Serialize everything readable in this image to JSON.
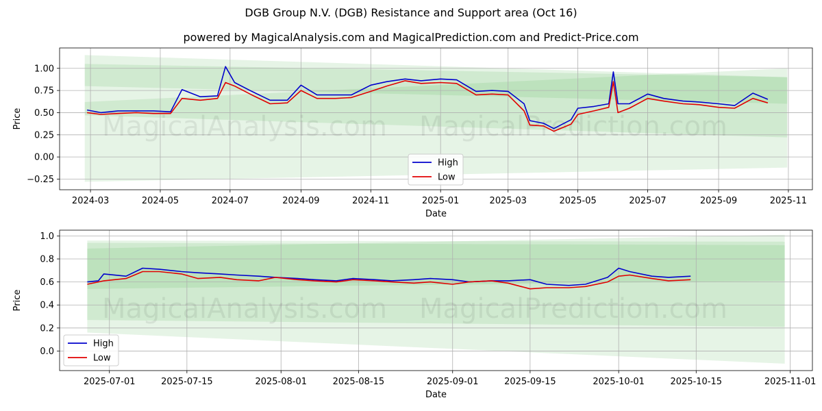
{
  "title": "DGB Group N.V. (DGB) Resistance and Support area (Oct 16)",
  "subtitle": "powered by MagicalAnalysis.com and MagicalPrediction.com and Predict-Price.com",
  "watermarks": [
    "MagicalAnalysis.com",
    "MagicalPrediction.com"
  ],
  "colors": {
    "high": "#0000cc",
    "low": "#e00000",
    "band": "#4caf50",
    "grid": "#b0b0b0"
  },
  "chart_data": [
    {
      "type": "line",
      "xlabel": "Date",
      "ylabel": "Price",
      "xlim": [
        "2024-02-03",
        "2025-11-22"
      ],
      "ylim": [
        -0.37,
        1.23
      ],
      "grid": true,
      "legend": {
        "position": "bottom-center",
        "entries": [
          "High",
          "Low"
        ]
      },
      "x_ticks": [
        "2024-03",
        "2024-05",
        "2024-07",
        "2024-09",
        "2024-11",
        "2025-01",
        "2025-03",
        "2025-05",
        "2025-07",
        "2025-09",
        "2025-11"
      ],
      "x_tick_dates": [
        "2024-03-01",
        "2024-05-01",
        "2024-07-01",
        "2024-09-01",
        "2024-11-01",
        "2025-01-01",
        "2025-03-01",
        "2025-05-01",
        "2025-07-01",
        "2025-09-01",
        "2025-11-01"
      ],
      "y_ticks": [
        "−0.25",
        "0.00",
        "0.25",
        "0.50",
        "0.75",
        "1.00"
      ],
      "y_tick_values": [
        -0.25,
        0,
        0.25,
        0.5,
        0.75,
        1.0
      ],
      "bands": [
        {
          "x": [
            "2024-02-25",
            "2025-10-31"
          ],
          "upper": [
            1.05,
            0.9
          ],
          "lower": [
            0.8,
            0.6
          ]
        },
        {
          "x": [
            "2024-02-25",
            "2025-10-31"
          ],
          "upper": [
            0.62,
            1.0
          ],
          "lower": [
            0.47,
            0.22
          ]
        },
        {
          "x": [
            "2024-02-25",
            "2025-10-31"
          ],
          "upper": [
            1.15,
            0.9
          ],
          "lower": [
            -0.28,
            -0.12
          ]
        }
      ],
      "series": [
        {
          "name": "High",
          "x": [
            "2024-02-27",
            "2024-03-10",
            "2024-03-25",
            "2024-04-10",
            "2024-04-25",
            "2024-05-10",
            "2024-05-20",
            "2024-06-05",
            "2024-06-20",
            "2024-06-27",
            "2024-07-05",
            "2024-07-20",
            "2024-08-05",
            "2024-08-20",
            "2024-09-01",
            "2024-09-15",
            "2024-10-01",
            "2024-10-15",
            "2024-11-01",
            "2024-11-15",
            "2024-12-01",
            "2024-12-15",
            "2025-01-01",
            "2025-01-15",
            "2025-02-01",
            "2025-02-15",
            "2025-03-01",
            "2025-03-15",
            "2025-03-20",
            "2025-04-01",
            "2025-04-10",
            "2025-04-25",
            "2025-05-01",
            "2025-05-15",
            "2025-05-28",
            "2025-06-01",
            "2025-06-05",
            "2025-06-15",
            "2025-07-01",
            "2025-07-15",
            "2025-08-01",
            "2025-08-15",
            "2025-09-01",
            "2025-09-15",
            "2025-10-01",
            "2025-10-14"
          ],
          "values": [
            0.53,
            0.5,
            0.52,
            0.52,
            0.52,
            0.51,
            0.76,
            0.68,
            0.69,
            1.02,
            0.84,
            0.74,
            0.64,
            0.64,
            0.81,
            0.7,
            0.7,
            0.7,
            0.81,
            0.85,
            0.88,
            0.86,
            0.88,
            0.87,
            0.74,
            0.75,
            0.74,
            0.6,
            0.41,
            0.38,
            0.32,
            0.42,
            0.55,
            0.57,
            0.6,
            0.96,
            0.6,
            0.6,
            0.71,
            0.66,
            0.63,
            0.62,
            0.6,
            0.58,
            0.72,
            0.65
          ]
        },
        {
          "name": "Low",
          "x": [
            "2024-02-27",
            "2024-03-10",
            "2024-03-25",
            "2024-04-10",
            "2024-04-25",
            "2024-05-10",
            "2024-05-20",
            "2024-06-05",
            "2024-06-20",
            "2024-06-27",
            "2024-07-05",
            "2024-07-20",
            "2024-08-05",
            "2024-08-20",
            "2024-09-01",
            "2024-09-15",
            "2024-10-01",
            "2024-10-15",
            "2024-11-01",
            "2024-11-15",
            "2024-12-01",
            "2024-12-15",
            "2025-01-01",
            "2025-01-15",
            "2025-02-01",
            "2025-02-15",
            "2025-03-01",
            "2025-03-15",
            "2025-03-20",
            "2025-04-01",
            "2025-04-10",
            "2025-04-25",
            "2025-05-01",
            "2025-05-15",
            "2025-05-28",
            "2025-06-01",
            "2025-06-05",
            "2025-06-15",
            "2025-07-01",
            "2025-07-15",
            "2025-08-01",
            "2025-08-15",
            "2025-09-01",
            "2025-09-15",
            "2025-10-01",
            "2025-10-14"
          ],
          "values": [
            0.5,
            0.48,
            0.49,
            0.5,
            0.49,
            0.49,
            0.66,
            0.64,
            0.66,
            0.84,
            0.8,
            0.7,
            0.6,
            0.61,
            0.75,
            0.66,
            0.66,
            0.67,
            0.74,
            0.8,
            0.86,
            0.83,
            0.84,
            0.83,
            0.7,
            0.71,
            0.7,
            0.52,
            0.36,
            0.35,
            0.29,
            0.37,
            0.48,
            0.52,
            0.56,
            0.85,
            0.5,
            0.55,
            0.66,
            0.63,
            0.6,
            0.59,
            0.56,
            0.55,
            0.66,
            0.61
          ]
        }
      ]
    },
    {
      "type": "line",
      "xlabel": "Date",
      "ylabel": "Price",
      "xlim": [
        "2025-06-22",
        "2025-11-05"
      ],
      "ylim": [
        -0.17,
        1.05
      ],
      "grid": true,
      "legend": {
        "position": "bottom-left",
        "entries": [
          "High",
          "Low"
        ]
      },
      "x_ticks": [
        "2025-07-01",
        "2025-07-15",
        "2025-08-01",
        "2025-08-15",
        "2025-09-01",
        "2025-09-15",
        "2025-10-01",
        "2025-10-15",
        "2025-11-01"
      ],
      "y_ticks": [
        "0.0",
        "0.2",
        "0.4",
        "0.6",
        "0.8",
        "1.0"
      ],
      "y_tick_values": [
        0,
        0.2,
        0.4,
        0.6,
        0.8,
        1.0
      ],
      "bands": [
        {
          "x": [
            "2025-06-27",
            "2025-10-31"
          ],
          "upper": [
            0.94,
            0.92
          ],
          "lower": [
            0.54,
            0.61
          ]
        },
        {
          "x": [
            "2025-06-27",
            "2025-10-31"
          ],
          "upper": [
            0.89,
            1.01
          ],
          "lower": [
            0.27,
            0.21
          ]
        },
        {
          "x": [
            "2025-06-27",
            "2025-10-31"
          ],
          "upper": [
            0.96,
            0.95
          ],
          "lower": [
            0.16,
            -0.11
          ]
        }
      ],
      "series": [
        {
          "name": "High",
          "x": [
            "2025-06-27",
            "2025-06-29",
            "2025-06-30",
            "2025-07-04",
            "2025-07-07",
            "2025-07-10",
            "2025-07-14",
            "2025-07-17",
            "2025-07-21",
            "2025-07-24",
            "2025-07-28",
            "2025-07-31",
            "2025-08-04",
            "2025-08-07",
            "2025-08-11",
            "2025-08-14",
            "2025-08-18",
            "2025-08-21",
            "2025-08-25",
            "2025-08-28",
            "2025-09-01",
            "2025-09-04",
            "2025-09-08",
            "2025-09-11",
            "2025-09-15",
            "2025-09-18",
            "2025-09-22",
            "2025-09-25",
            "2025-09-29",
            "2025-10-01",
            "2025-10-03",
            "2025-10-07",
            "2025-10-10",
            "2025-10-14"
          ],
          "values": [
            0.6,
            0.61,
            0.67,
            0.65,
            0.72,
            0.71,
            0.69,
            0.68,
            0.67,
            0.66,
            0.65,
            0.64,
            0.63,
            0.62,
            0.61,
            0.63,
            0.62,
            0.61,
            0.62,
            0.63,
            0.62,
            0.6,
            0.61,
            0.61,
            0.62,
            0.58,
            0.57,
            0.58,
            0.64,
            0.72,
            0.69,
            0.65,
            0.64,
            0.65
          ]
        },
        {
          "name": "Low",
          "x": [
            "2025-06-27",
            "2025-06-29",
            "2025-06-30",
            "2025-07-04",
            "2025-07-07",
            "2025-07-10",
            "2025-07-14",
            "2025-07-17",
            "2025-07-21",
            "2025-07-24",
            "2025-07-28",
            "2025-07-31",
            "2025-08-04",
            "2025-08-07",
            "2025-08-11",
            "2025-08-14",
            "2025-08-18",
            "2025-08-21",
            "2025-08-25",
            "2025-08-28",
            "2025-09-01",
            "2025-09-04",
            "2025-09-08",
            "2025-09-11",
            "2025-09-15",
            "2025-09-18",
            "2025-09-22",
            "2025-09-25",
            "2025-09-29",
            "2025-10-01",
            "2025-10-03",
            "2025-10-07",
            "2025-10-10",
            "2025-10-14"
          ],
          "values": [
            0.58,
            0.6,
            0.61,
            0.63,
            0.69,
            0.69,
            0.67,
            0.63,
            0.64,
            0.62,
            0.61,
            0.64,
            0.62,
            0.61,
            0.6,
            0.62,
            0.61,
            0.6,
            0.59,
            0.6,
            0.58,
            0.6,
            0.61,
            0.59,
            0.54,
            0.55,
            0.55,
            0.56,
            0.6,
            0.65,
            0.66,
            0.63,
            0.61,
            0.62
          ]
        }
      ]
    }
  ]
}
